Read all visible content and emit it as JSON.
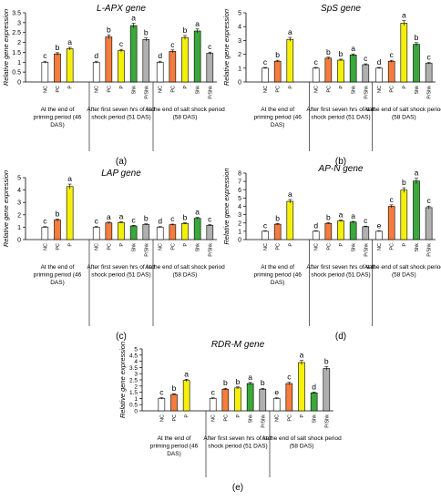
{
  "chart_data": [
    {
      "type": "bar",
      "panel_label": "(a)",
      "title": "L-APX gene",
      "ylabel": "Relative gene expression",
      "ylim": [
        0,
        3.5
      ],
      "yticks": [
        "0",
        "0.5",
        "1",
        "1.5",
        "2",
        "2.5",
        "3",
        "3.5"
      ],
      "groups": [
        {
          "label": "At the end of priming period (46 DAS)",
          "bars": [
            {
              "cat": "NC",
              "value": 1.0,
              "err": 0.05,
              "letter": "c",
              "color": "#ffffff"
            },
            {
              "cat": "PC",
              "value": 1.42,
              "err": 0.06,
              "letter": "b",
              "color": "#f47c3c"
            },
            {
              "cat": "P",
              "value": 1.68,
              "err": 0.07,
              "letter": "a",
              "color": "#f5f00a"
            }
          ]
        },
        {
          "label": "After first seven hrs of salt shock period (51 DAS)",
          "bars": [
            {
              "cat": "NC",
              "value": 1.0,
              "err": 0.05,
              "letter": "d",
              "color": "#ffffff"
            },
            {
              "cat": "PC",
              "value": 2.28,
              "err": 0.1,
              "letter": "b",
              "color": "#f47c3c"
            },
            {
              "cat": "P",
              "value": 1.58,
              "err": 0.07,
              "letter": "c",
              "color": "#f5f00a"
            },
            {
              "cat": "Shk",
              "value": 2.85,
              "err": 0.12,
              "letter": "a",
              "color": "#3aa83a"
            },
            {
              "cat": "P/Shk",
              "value": 2.15,
              "err": 0.08,
              "letter": "b",
              "color": "#b0b0b0"
            }
          ]
        },
        {
          "label": "At the end of salt shock period (58 DAS)",
          "bars": [
            {
              "cat": "NC",
              "value": 1.0,
              "err": 0.05,
              "letter": "d",
              "color": "#ffffff"
            },
            {
              "cat": "PC",
              "value": 1.55,
              "err": 0.07,
              "letter": "c",
              "color": "#f47c3c"
            },
            {
              "cat": "P",
              "value": 2.25,
              "err": 0.1,
              "letter": "b",
              "color": "#f5f00a"
            },
            {
              "cat": "Shk",
              "value": 2.58,
              "err": 0.1,
              "letter": "a",
              "color": "#3aa83a"
            },
            {
              "cat": "P/Shk",
              "value": 1.45,
              "err": 0.06,
              "letter": "c",
              "color": "#b0b0b0"
            }
          ]
        }
      ]
    },
    {
      "type": "bar",
      "panel_label": "(b)",
      "title": "SpS gene",
      "ylabel": "Relative gene expression",
      "ylim": [
        0,
        5
      ],
      "yticks": [
        "0",
        "1",
        "2",
        "3",
        "4",
        "5"
      ],
      "groups": [
        {
          "label": "At the end of priming period (46 DAS)",
          "bars": [
            {
              "cat": "NC",
              "value": 1.0,
              "err": 0.05,
              "letter": "c",
              "color": "#ffffff"
            },
            {
              "cat": "PC",
              "value": 1.5,
              "err": 0.07,
              "letter": "b",
              "color": "#f47c3c"
            },
            {
              "cat": "P",
              "value": 3.08,
              "err": 0.14,
              "letter": "a",
              "color": "#f5f00a"
            }
          ]
        },
        {
          "label": "After first seven hrs of salt shock period (51 DAS)",
          "bars": [
            {
              "cat": "NC",
              "value": 1.0,
              "err": 0.05,
              "letter": "c",
              "color": "#ffffff"
            },
            {
              "cat": "PC",
              "value": 1.72,
              "err": 0.07,
              "letter": "b",
              "color": "#f47c3c"
            },
            {
              "cat": "P",
              "value": 1.58,
              "err": 0.07,
              "letter": "b",
              "color": "#f5f00a"
            },
            {
              "cat": "Shk",
              "value": 1.95,
              "err": 0.08,
              "letter": "a",
              "color": "#3aa83a"
            },
            {
              "cat": "P/Shk",
              "value": 1.25,
              "err": 0.06,
              "letter": "c",
              "color": "#b0b0b0"
            }
          ]
        },
        {
          "label": "At the end of salt shock period (58 DAS)",
          "bars": [
            {
              "cat": "NC",
              "value": 1.0,
              "err": 0.05,
              "letter": "d",
              "color": "#ffffff"
            },
            {
              "cat": "PC",
              "value": 1.5,
              "err": 0.07,
              "letter": "c",
              "color": "#f47c3c"
            },
            {
              "cat": "P",
              "value": 4.25,
              "err": 0.18,
              "letter": "a",
              "color": "#f5f00a"
            },
            {
              "cat": "Shk",
              "value": 2.72,
              "err": 0.12,
              "letter": "b",
              "color": "#3aa83a"
            },
            {
              "cat": "P/Shk",
              "value": 1.35,
              "err": 0.06,
              "letter": "c",
              "color": "#b0b0b0"
            }
          ]
        }
      ]
    },
    {
      "type": "bar",
      "panel_label": "(c)",
      "title": "LAP gene",
      "ylabel": "Relative gene expression",
      "ylim": [
        0,
        5
      ],
      "yticks": [
        "0",
        "1",
        "2",
        "3",
        "4",
        "5"
      ],
      "groups": [
        {
          "label": "At the end of priming period (46 DAS)",
          "bars": [
            {
              "cat": "NC",
              "value": 1.0,
              "err": 0.05,
              "letter": "c",
              "color": "#ffffff"
            },
            {
              "cat": "PC",
              "value": 1.58,
              "err": 0.07,
              "letter": "b",
              "color": "#f47c3c"
            },
            {
              "cat": "P",
              "value": 4.28,
              "err": 0.2,
              "letter": "a",
              "color": "#f5f00a"
            }
          ]
        },
        {
          "label": "After first seven hrs of salt shock period (51 DAS)",
          "bars": [
            {
              "cat": "NC",
              "value": 1.0,
              "err": 0.05,
              "letter": "c",
              "color": "#ffffff"
            },
            {
              "cat": "PC",
              "value": 1.35,
              "err": 0.06,
              "letter": "a",
              "color": "#f47c3c"
            },
            {
              "cat": "P",
              "value": 1.38,
              "err": 0.06,
              "letter": "a",
              "color": "#f5f00a"
            },
            {
              "cat": "Shk",
              "value": 1.1,
              "err": 0.05,
              "letter": "c",
              "color": "#3aa83a"
            },
            {
              "cat": "P/Shk",
              "value": 1.22,
              "err": 0.05,
              "letter": "b",
              "color": "#b0b0b0"
            }
          ]
        },
        {
          "label": "At the end of salt shock period (58 DAS)",
          "bars": [
            {
              "cat": "NC",
              "value": 1.0,
              "err": 0.05,
              "letter": "d",
              "color": "#ffffff"
            },
            {
              "cat": "PC",
              "value": 1.2,
              "err": 0.05,
              "letter": "c",
              "color": "#f47c3c"
            },
            {
              "cat": "P",
              "value": 1.3,
              "err": 0.06,
              "letter": "b",
              "color": "#f5f00a"
            },
            {
              "cat": "Shk",
              "value": 1.72,
              "err": 0.07,
              "letter": "a",
              "color": "#3aa83a"
            },
            {
              "cat": "P/Shk",
              "value": 1.15,
              "err": 0.05,
              "letter": "c",
              "color": "#b0b0b0"
            }
          ]
        }
      ]
    },
    {
      "type": "bar",
      "panel_label": "(d)",
      "title": "AP-N gene",
      "ylabel": "Relative gene expression",
      "ylim": [
        0,
        8
      ],
      "yticks": [
        "0",
        "1",
        "2",
        "3",
        "4",
        "5",
        "6",
        "7",
        "8"
      ],
      "groups": [
        {
          "label": "At the end of priming period (46 DAS)",
          "bars": [
            {
              "cat": "NC",
              "value": 1.0,
              "err": 0.05,
              "letter": "c",
              "color": "#ffffff"
            },
            {
              "cat": "PC",
              "value": 1.85,
              "err": 0.08,
              "letter": "b",
              "color": "#f47c3c"
            },
            {
              "cat": "P",
              "value": 4.6,
              "err": 0.22,
              "letter": "a",
              "color": "#f5f00a"
            }
          ]
        },
        {
          "label": "After first seven hrs of salt shock period (51 DAS)",
          "bars": [
            {
              "cat": "NC",
              "value": 1.0,
              "err": 0.05,
              "letter": "d",
              "color": "#ffffff"
            },
            {
              "cat": "PC",
              "value": 1.95,
              "err": 0.08,
              "letter": "b",
              "color": "#f47c3c"
            },
            {
              "cat": "P",
              "value": 2.25,
              "err": 0.1,
              "letter": "a",
              "color": "#f5f00a"
            },
            {
              "cat": "Shk",
              "value": 2.1,
              "err": 0.09,
              "letter": "a",
              "color": "#3aa83a"
            },
            {
              "cat": "P/Shk",
              "value": 1.55,
              "err": 0.07,
              "letter": "c",
              "color": "#b0b0b0"
            }
          ]
        },
        {
          "label": "At the end of salt shock period (58 DAS)",
          "bars": [
            {
              "cat": "NC",
              "value": 1.0,
              "err": 0.05,
              "letter": "e",
              "color": "#ffffff"
            },
            {
              "cat": "PC",
              "value": 4.0,
              "err": 0.18,
              "letter": "c",
              "color": "#f47c3c"
            },
            {
              "cat": "P",
              "value": 5.95,
              "err": 0.28,
              "letter": "b",
              "color": "#f5f00a"
            },
            {
              "cat": "Shk",
              "value": 7.05,
              "err": 0.32,
              "letter": "a",
              "color": "#3aa83a"
            },
            {
              "cat": "P/Shk",
              "value": 3.85,
              "err": 0.18,
              "letter": "c",
              "color": "#b0b0b0"
            }
          ]
        }
      ]
    },
    {
      "type": "bar",
      "panel_label": "(e)",
      "title": "RDR-M gene",
      "ylabel": "Relative gene expression",
      "ylim": [
        0,
        5
      ],
      "yticks": [
        "0",
        "0.5",
        "1",
        "1.5",
        "2",
        "2.5",
        "3",
        "3.5",
        "4",
        "4.5",
        "5"
      ],
      "groups": [
        {
          "label": "At the end of priming period (46 DAS)",
          "bars": [
            {
              "cat": "NC",
              "value": 1.0,
              "err": 0.05,
              "letter": "c",
              "color": "#ffffff"
            },
            {
              "cat": "PC",
              "value": 1.32,
              "err": 0.06,
              "letter": "b",
              "color": "#f47c3c"
            },
            {
              "cat": "P",
              "value": 2.45,
              "err": 0.1,
              "letter": "a",
              "color": "#f5f00a"
            }
          ]
        },
        {
          "label": "After first seven hrs of salt shock period (51 DAS)",
          "bars": [
            {
              "cat": "NC",
              "value": 1.0,
              "err": 0.05,
              "letter": "c",
              "color": "#ffffff"
            },
            {
              "cat": "PC",
              "value": 1.75,
              "err": 0.07,
              "letter": "b",
              "color": "#f47c3c"
            },
            {
              "cat": "P",
              "value": 1.85,
              "err": 0.08,
              "letter": "b",
              "color": "#f5f00a"
            },
            {
              "cat": "Shk",
              "value": 2.2,
              "err": 0.09,
              "letter": "a",
              "color": "#3aa83a"
            },
            {
              "cat": "P/Shk",
              "value": 1.75,
              "err": 0.07,
              "letter": "b",
              "color": "#b0b0b0"
            }
          ]
        },
        {
          "label": "At the end of salt shock period (58 DAS)",
          "bars": [
            {
              "cat": "NC",
              "value": 1.0,
              "err": 0.05,
              "letter": "e",
              "color": "#ffffff"
            },
            {
              "cat": "PC",
              "value": 2.2,
              "err": 0.1,
              "letter": "c",
              "color": "#f47c3c"
            },
            {
              "cat": "P",
              "value": 3.9,
              "err": 0.17,
              "letter": "a",
              "color": "#f5f00a"
            },
            {
              "cat": "Shk",
              "value": 1.45,
              "err": 0.06,
              "letter": "d",
              "color": "#3aa83a"
            },
            {
              "cat": "P/Shk",
              "value": 3.42,
              "err": 0.15,
              "letter": "b",
              "color": "#b0b0b0"
            }
          ]
        }
      ]
    }
  ]
}
